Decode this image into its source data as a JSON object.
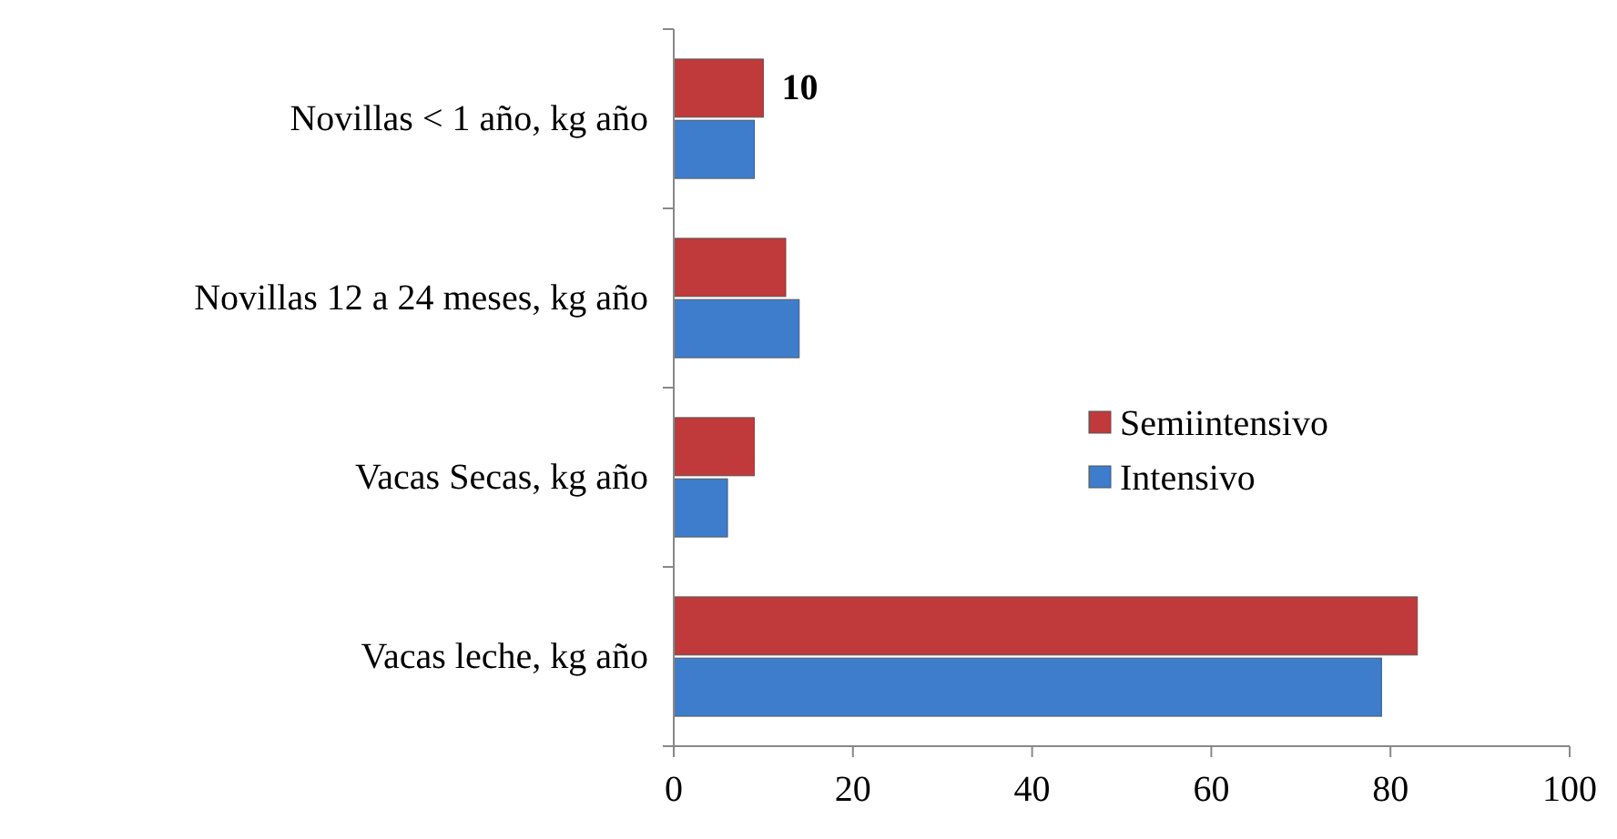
{
  "chart_data": {
    "type": "bar",
    "orientation": "horizontal",
    "categories": [
      "Novillas < 1 año, kg año",
      "Novillas 12 a 24 meses, kg año",
      "Vacas Secas, kg año",
      "Vacas leche, kg año"
    ],
    "series": [
      {
        "name": "Semiintensivo",
        "color": "#c0393b",
        "values": [
          10,
          12.5,
          9,
          83
        ],
        "value_labels": [
          "10",
          null,
          null,
          null
        ]
      },
      {
        "name": "Intensivo",
        "color": "#3d7dcc",
        "values": [
          9,
          14,
          6,
          79
        ]
      }
    ],
    "xlim": [
      0,
      100
    ],
    "xticks": [
      0,
      20,
      40,
      60,
      80,
      100
    ],
    "legend": "right",
    "grid": false
  }
}
